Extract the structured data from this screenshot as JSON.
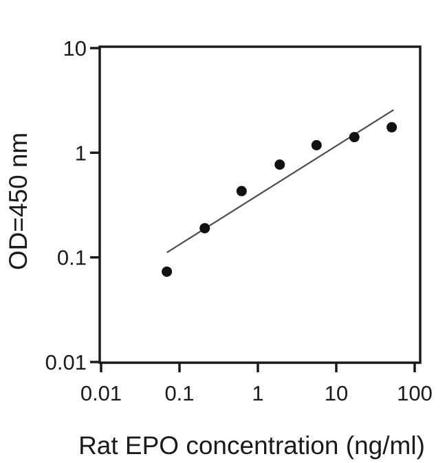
{
  "figure": {
    "background_color": "#ffffff",
    "axis_color": "#1a1a1a",
    "marker_color": "#111111",
    "fit_line_color": "#4d4d4d"
  },
  "chart_data": {
    "type": "scatter",
    "title": "",
    "xlabel": "Rat EPO concentration (ng/ml)",
    "ylabel": "OD=450 nm",
    "x_scale": "log",
    "y_scale": "log",
    "xlim": [
      0.01,
      100
    ],
    "ylim": [
      0.01,
      10
    ],
    "grid": false,
    "legend": null,
    "x_ticks": [
      {
        "value": 0.01,
        "label": "0.01"
      },
      {
        "value": 0.1,
        "label": "0.1"
      },
      {
        "value": 1,
        "label": "1"
      },
      {
        "value": 10,
        "label": "10"
      },
      {
        "value": 100,
        "label": "100"
      }
    ],
    "y_ticks": [
      {
        "value": 0.01,
        "label": "0.01"
      },
      {
        "value": 0.1,
        "label": "0.1"
      },
      {
        "value": 1,
        "label": "1"
      },
      {
        "value": 10,
        "label": "10"
      }
    ],
    "series": [
      {
        "name": "standard-curve-fit-line",
        "type": "line",
        "x": [
          0.07,
          53
        ],
        "y": [
          0.112,
          2.55
        ]
      },
      {
        "name": "standard-curve-points",
        "type": "scatter",
        "marker": "filled-circle",
        "x": [
          0.069,
          0.21,
          0.62,
          1.9,
          5.6,
          17,
          51
        ],
        "y": [
          0.073,
          0.19,
          0.43,
          0.77,
          1.18,
          1.41,
          1.75
        ]
      }
    ]
  }
}
